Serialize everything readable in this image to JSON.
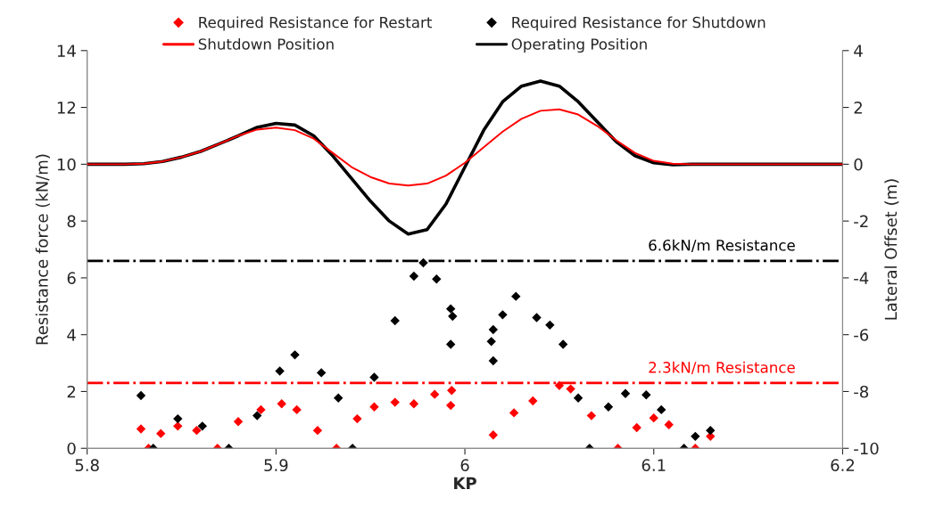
{
  "chart_data": {
    "type": "scatter",
    "xlabel": "KP",
    "ylabel": "Resistance force (kN/m)",
    "y2label": "Lateral Offset (m)",
    "xlim": [
      5.8,
      6.2
    ],
    "xticks": [
      5.8,
      5.9,
      {
        "value": 6.0,
        "label": "6"
      },
      6.1,
      6.2
    ],
    "ylim": [
      0,
      14
    ],
    "yticks": [
      0,
      2,
      4,
      6,
      8,
      10,
      12,
      14
    ],
    "y2lim": [
      -10,
      4
    ],
    "y2ticks": [
      -10,
      -8,
      -6,
      -4,
      -2,
      0,
      2,
      4
    ],
    "grid": false,
    "legend": "top",
    "series": [
      {
        "name": "Required Resistance for Restart",
        "marker": "diamond",
        "color": "#ff0000",
        "x": [
          5.8285,
          5.8325,
          5.839,
          5.848,
          5.858,
          5.869,
          5.88,
          5.892,
          5.903,
          5.911,
          5.922,
          5.932,
          5.943,
          5.952,
          5.963,
          5.973,
          5.984,
          5.9925,
          5.993,
          6.015,
          6.026,
          6.036,
          6.05,
          6.056,
          6.067,
          6.081,
          6.091,
          6.1,
          6.108,
          6.122,
          6.13
        ],
        "values": [
          0.68,
          0,
          0.52,
          0.78,
          0.63,
          0,
          0.94,
          1.36,
          1.57,
          1.36,
          0.63,
          0,
          1.04,
          1.46,
          1.62,
          1.57,
          1.9,
          1.51,
          2.04,
          0.47,
          1.25,
          1.67,
          2.21,
          2.09,
          1.15,
          0,
          0.73,
          1.07,
          0.83,
          0,
          0.42
        ]
      },
      {
        "name": "Required Resistance for Shutdown",
        "marker": "diamond",
        "color": "#000000",
        "x": [
          5.8285,
          5.835,
          5.848,
          5.861,
          5.875,
          5.89,
          5.902,
          5.91,
          5.924,
          5.933,
          5.9405,
          5.952,
          5.963,
          5.973,
          5.978,
          5.985,
          5.9925,
          5.9925,
          5.9935,
          6.014,
          6.015,
          6.015,
          6.02,
          6.027,
          6.038,
          6.045,
          6.052,
          6.06,
          6.066,
          6.076,
          6.085,
          6.096,
          6.104,
          6.116,
          6.122,
          6.13
        ],
        "values": [
          1.86,
          0,
          1.04,
          0.78,
          0,
          1.15,
          2.72,
          3.29,
          2.66,
          1.77,
          0,
          2.5,
          4.49,
          6.06,
          6.53,
          5.96,
          3.66,
          4.91,
          4.65,
          3.76,
          4.18,
          3.08,
          4.7,
          5.35,
          4.6,
          4.34,
          3.66,
          1.77,
          0,
          1.46,
          1.93,
          1.88,
          1.36,
          0,
          0.42,
          0.63
        ]
      },
      {
        "name": "Shutdown Position",
        "type": "line",
        "axis": "y2",
        "marker": "none",
        "color": "#ff0000",
        "x": [
          5.8,
          5.82,
          5.83,
          5.84,
          5.85,
          5.86,
          5.87,
          5.88,
          5.89,
          5.9,
          5.91,
          5.92,
          5.93,
          5.94,
          5.95,
          5.96,
          5.97,
          5.98,
          5.99,
          6.0,
          6.01,
          6.02,
          6.03,
          6.04,
          6.05,
          6.06,
          6.07,
          6.08,
          6.09,
          6.1,
          6.11,
          6.12,
          6.2
        ],
        "values": [
          0,
          0,
          0.02,
          0.1,
          0.25,
          0.45,
          0.72,
          1.0,
          1.22,
          1.29,
          1.2,
          0.9,
          0.4,
          -0.1,
          -0.45,
          -0.68,
          -0.75,
          -0.68,
          -0.4,
          0.05,
          0.6,
          1.15,
          1.6,
          1.88,
          1.93,
          1.75,
          1.35,
          0.85,
          0.4,
          0.12,
          0.02,
          0,
          0
        ]
      },
      {
        "name": "Operating Position",
        "type": "line",
        "axis": "y2",
        "marker": "none",
        "color": "#000000",
        "x": [
          5.8,
          5.82,
          5.83,
          5.84,
          5.85,
          5.86,
          5.87,
          5.88,
          5.89,
          5.9,
          5.91,
          5.92,
          5.93,
          5.94,
          5.95,
          5.96,
          5.97,
          5.98,
          5.99,
          6.0,
          6.01,
          6.02,
          6.03,
          6.04,
          6.05,
          6.06,
          6.07,
          6.08,
          6.09,
          6.1,
          6.11,
          6.12,
          6.2
        ],
        "values": [
          0,
          0,
          0.02,
          0.1,
          0.25,
          0.45,
          0.72,
          1.0,
          1.3,
          1.44,
          1.38,
          1.0,
          0.3,
          -0.5,
          -1.3,
          -2.0,
          -2.46,
          -2.3,
          -1.4,
          -0.1,
          1.2,
          2.2,
          2.75,
          2.93,
          2.75,
          2.2,
          1.5,
          0.8,
          0.3,
          0.05,
          -0.02,
          0,
          0
        ]
      }
    ],
    "ref_lines": [
      {
        "axis": "y",
        "value": 6.6,
        "label": "6.6kN/m Resistance",
        "color": "#000000",
        "line_style": "dashdot"
      },
      {
        "axis": "y",
        "value": 2.3,
        "label": "2.3kN/m Resistance",
        "color": "#ff0000",
        "line_style": "dashdot"
      }
    ]
  }
}
